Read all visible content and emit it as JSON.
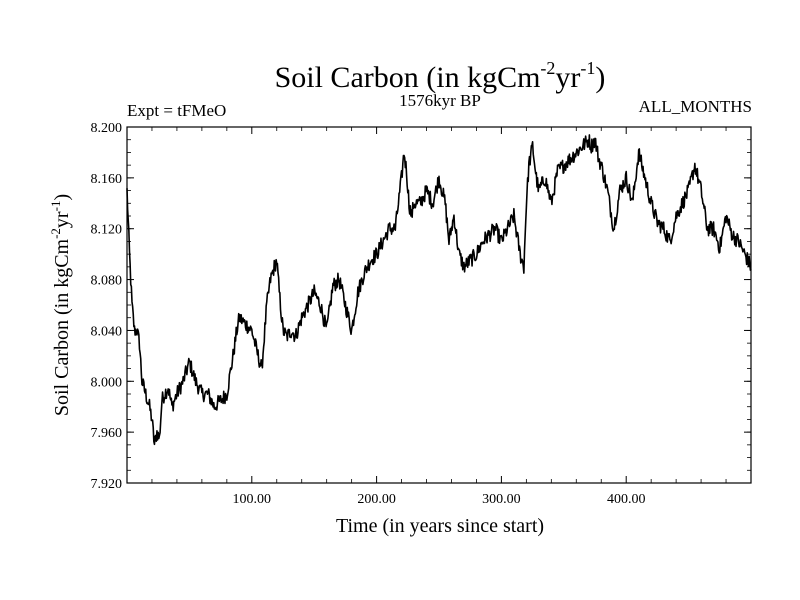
{
  "chart_data": {
    "type": "line",
    "title": {
      "main": "Soil Carbon (in kgCm",
      "sup1": "-2",
      "mid": "yr",
      "sup2": "-1",
      "end": ")"
    },
    "left_label": "Expt = tFMeO",
    "subtitle": "1576kyr BP",
    "right_label": "ALL_MONTHS",
    "xlabel": "Time (in years since start)",
    "ylabel": {
      "main": "Soil Carbon (in kgCm",
      "sup1": "-2",
      "mid": "yr",
      "sup2": "-1",
      "end": ")"
    },
    "xlim": [
      0,
      500
    ],
    "ylim": [
      7.92,
      8.2
    ],
    "xticks": [
      100,
      200,
      300,
      400
    ],
    "xtick_labels": [
      "100.00",
      "200.00",
      "300.00",
      "400.00"
    ],
    "yticks": [
      7.92,
      7.96,
      8.0,
      8.04,
      8.08,
      8.12,
      8.16,
      8.2
    ],
    "ytick_labels": [
      "7.920",
      "7.960",
      "8.000",
      "8.040",
      "8.080",
      "8.120",
      "8.160",
      "8.200"
    ],
    "grid": false,
    "series": [
      {
        "name": "Soil Carbon",
        "color": "#000000",
        "x": [
          0,
          2,
          4,
          6,
          8,
          10,
          12,
          15,
          18,
          20,
          22,
          24,
          26,
          28,
          30,
          33,
          36,
          40,
          45,
          50,
          55,
          60,
          65,
          70,
          75,
          80,
          85,
          88,
          90,
          95,
          100,
          105,
          108,
          112,
          115,
          118,
          120,
          122,
          125,
          128,
          132,
          135,
          140,
          145,
          150,
          155,
          160,
          165,
          170,
          175,
          180,
          185,
          190,
          195,
          200,
          205,
          210,
          215,
          220,
          222,
          224,
          226,
          228,
          230,
          235,
          240,
          245,
          250,
          255,
          258,
          262,
          266,
          270,
          275,
          280,
          285,
          290,
          295,
          300,
          305,
          310,
          315,
          318,
          320,
          322,
          325,
          328,
          330,
          335,
          340,
          345,
          350,
          355,
          360,
          365,
          370,
          372,
          375,
          378,
          380,
          385,
          390,
          395,
          400,
          405,
          410,
          415,
          420,
          425,
          430,
          435,
          440,
          445,
          450,
          455,
          460,
          465,
          470,
          475,
          480,
          485,
          490,
          495,
          500
        ],
        "values": [
          8.15,
          8.1,
          8.06,
          8.04,
          8.04,
          8.03,
          8.0,
          7.99,
          7.98,
          7.97,
          7.95,
          7.96,
          7.955,
          7.985,
          7.99,
          7.995,
          7.98,
          7.99,
          8.0,
          8.015,
          8.0,
          7.99,
          7.99,
          7.98,
          7.985,
          7.99,
          8.02,
          8.04,
          8.05,
          8.045,
          8.04,
          8.02,
          8.01,
          8.06,
          8.08,
          8.09,
          8.095,
          8.07,
          8.04,
          8.035,
          8.04,
          8.035,
          8.05,
          8.06,
          8.07,
          8.06,
          8.04,
          8.075,
          8.08,
          8.06,
          8.04,
          8.07,
          8.085,
          8.095,
          8.1,
          8.11,
          8.12,
          8.12,
          8.16,
          8.18,
          8.165,
          8.14,
          8.13,
          8.14,
          8.14,
          8.15,
          8.14,
          8.16,
          8.14,
          8.11,
          8.13,
          8.1,
          8.09,
          8.095,
          8.1,
          8.11,
          8.115,
          8.12,
          8.11,
          8.12,
          8.13,
          8.1,
          8.09,
          8.14,
          8.17,
          8.185,
          8.16,
          8.15,
          8.16,
          8.14,
          8.165,
          8.17,
          8.175,
          8.18,
          8.185,
          8.19,
          8.185,
          8.19,
          8.175,
          8.17,
          8.15,
          8.12,
          8.15,
          8.16,
          8.14,
          8.18,
          8.16,
          8.14,
          8.125,
          8.12,
          8.11,
          8.13,
          8.14,
          8.15,
          8.17,
          8.15,
          8.12,
          8.12,
          8.105,
          8.13,
          8.115,
          8.11,
          8.1,
          8.09
        ]
      }
    ]
  }
}
